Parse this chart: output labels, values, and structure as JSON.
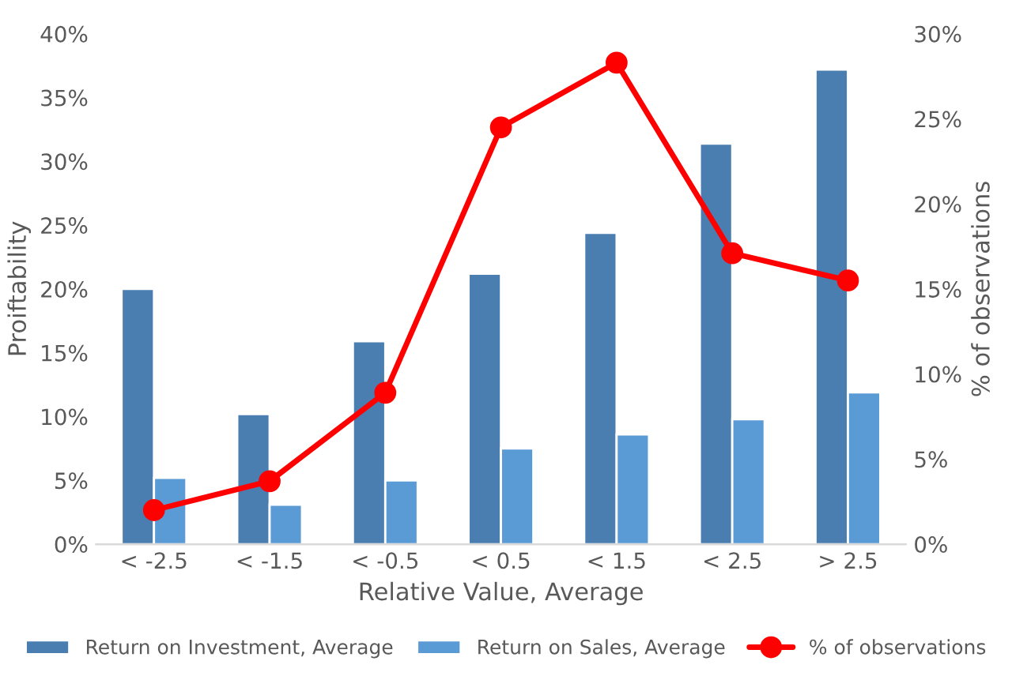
{
  "chart_data": {
    "type": "bar",
    "xlabel": "Relative Value, Average",
    "ylabel": "Proiftability",
    "y2label": "% of observations",
    "categories": [
      "< -2.5",
      "< -1.5",
      "< -0.5",
      "< 0.5",
      "< 1.5",
      "< 2.5",
      "> 2.5"
    ],
    "series": [
      {
        "name": "Return on Investment, Average",
        "color": "#4a7eb0",
        "values": [
          20.0,
          10.2,
          15.9,
          21.2,
          24.4,
          31.4,
          37.2
        ]
      },
      {
        "name": "Return on Sales, Average",
        "color": "#5b9bd5",
        "values": [
          5.2,
          3.1,
          5.0,
          7.5,
          8.6,
          9.8,
          11.9
        ]
      },
      {
        "name": "% of observations",
        "type": "line",
        "axis": "y2",
        "color": "#ff0000",
        "marker": "circle",
        "values": [
          2.0,
          3.7,
          8.9,
          24.5,
          28.3,
          17.1,
          15.5
        ]
      }
    ],
    "ylim": [
      0,
      40
    ],
    "yticks": [
      {
        "value": 0,
        "label": "0%"
      },
      {
        "value": 5,
        "label": "5%"
      },
      {
        "value": 10,
        "label": "10%"
      },
      {
        "value": 15,
        "label": "15%"
      },
      {
        "value": 20,
        "label": "20%"
      },
      {
        "value": 25,
        "label": "25%"
      },
      {
        "value": 30,
        "label": "30%"
      },
      {
        "value": 35,
        "label": "35%"
      },
      {
        "value": 40,
        "label": "40%"
      }
    ],
    "y2lim": [
      0,
      30
    ],
    "y2ticks": [
      {
        "value": 0,
        "label": "0%"
      },
      {
        "value": 5,
        "label": "5%"
      },
      {
        "value": 10,
        "label": "10%"
      },
      {
        "value": 15,
        "label": "15%"
      },
      {
        "value": 20,
        "label": "20%"
      },
      {
        "value": 25,
        "label": "25%"
      },
      {
        "value": 30,
        "label": "30%"
      }
    ],
    "grid": false,
    "legend": "bottom"
  }
}
